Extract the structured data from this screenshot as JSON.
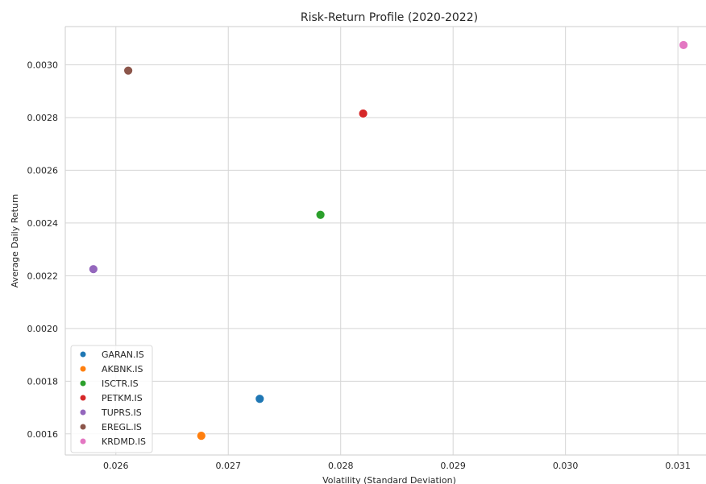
{
  "chart_data": {
    "type": "scatter",
    "title": "Risk-Return Profile (2020-2022)",
    "xlabel": "Volatility (Standard Deviation)",
    "ylabel": "Average Daily Return",
    "xlim": [
      0.02555,
      0.03125
    ],
    "ylim": [
      0.00152,
      0.003145
    ],
    "xticks": [
      "0.026",
      "0.027",
      "0.028",
      "0.029",
      "0.030",
      "0.031"
    ],
    "xtick_values": [
      0.026,
      0.027,
      0.028,
      0.029,
      0.03,
      0.031
    ],
    "yticks": [
      "0.0016",
      "0.0018",
      "0.0020",
      "0.0022",
      "0.0024",
      "0.0026",
      "0.0028",
      "0.0030"
    ],
    "ytick_values": [
      0.0016,
      0.0018,
      0.002,
      0.0022,
      0.0024,
      0.0026,
      0.0028,
      0.003
    ],
    "grid": true,
    "legend_position": "lower-left",
    "series": [
      {
        "name": "GARAN.IS",
        "color": "#1f77b4",
        "x": 0.02728,
        "y": 0.001733
      },
      {
        "name": "AKBNK.IS",
        "color": "#ff7f0e",
        "x": 0.02676,
        "y": 0.001593
      },
      {
        "name": "ISCTR.IS",
        "color": "#2ca02c",
        "x": 0.02782,
        "y": 0.002431
      },
      {
        "name": "PETKM.IS",
        "color": "#d62728",
        "x": 0.0282,
        "y": 0.002815
      },
      {
        "name": "TUPRS.IS",
        "color": "#9467bd",
        "x": 0.0258,
        "y": 0.002225
      },
      {
        "name": "EREGL.IS",
        "color": "#8c564b",
        "x": 0.02611,
        "y": 0.002978
      },
      {
        "name": "KRDMD.IS",
        "color": "#e377c2",
        "x": 0.03105,
        "y": 0.003075
      }
    ]
  }
}
